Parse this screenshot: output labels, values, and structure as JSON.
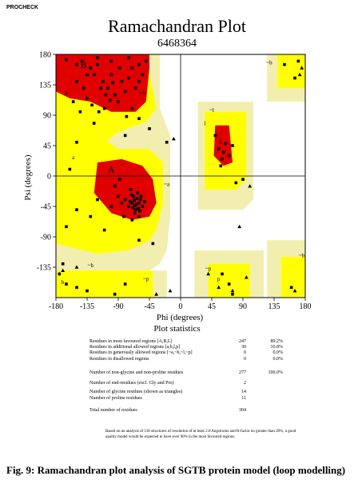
{
  "header": {
    "program": "PROCHECK",
    "title": "Ramachandran Plot",
    "subtitle": "6468364"
  },
  "colors": {
    "core": "#e00000",
    "allowed": "#ffff00",
    "generous": "#f2eeaf",
    "disallowed": "#ffffff",
    "points": "#000000"
  },
  "chart_data": {
    "type": "scatter",
    "title": "Ramachandran Plot",
    "xlabel": "Phi (degrees)",
    "ylabel": "Psi (degrees)",
    "xlim": [
      -180,
      180
    ],
    "ylim": [
      -180,
      180
    ],
    "xticks": [
      "-180",
      "-135",
      "-90",
      "-45",
      "0",
      "45",
      "90",
      "135",
      "180"
    ],
    "yticks": [
      "180",
      "135",
      "90",
      "45",
      "0",
      "-45",
      "-90",
      "-135"
    ],
    "region_labels": [
      {
        "text": "B",
        "phi": -140,
        "psi": 160
      },
      {
        "text": "b",
        "phi": -165,
        "psi": 120
      },
      {
        "text": "A",
        "phi": -100,
        "psi": 5
      },
      {
        "text": "a",
        "phi": -155,
        "psi": 25
      },
      {
        "text": "~b",
        "phi": -55,
        "psi": 120
      },
      {
        "text": "~a",
        "phi": -20,
        "psi": -15
      },
      {
        "text": "L",
        "phi": 58,
        "psi": 48
      },
      {
        "text": "~l",
        "phi": 45,
        "psi": 95
      },
      {
        "text": "l",
        "phi": 35,
        "psi": 75
      },
      {
        "text": "~p",
        "phi": -50,
        "psi": -155
      },
      {
        "text": "p",
        "phi": 55,
        "psi": -155
      },
      {
        "text": "~p",
        "phi": 40,
        "psi": -140
      },
      {
        "text": "~b",
        "phi": 128,
        "psi": 165
      },
      {
        "text": "b",
        "phi": -170,
        "psi": -160
      },
      {
        "text": "~b",
        "phi": -130,
        "psi": -135
      },
      {
        "text": "~b",
        "phi": 175,
        "psi": -120
      }
    ],
    "series": [
      {
        "symbol": "square",
        "points": [
          [
            -165,
            172
          ],
          [
            -150,
            165
          ],
          [
            -142,
            170
          ],
          [
            -130,
            160
          ],
          [
            -125,
            150
          ],
          [
            -120,
            165
          ],
          [
            -112,
            140
          ],
          [
            -105,
            130
          ],
          [
            -100,
            150
          ],
          [
            -95,
            120
          ],
          [
            -90,
            110
          ],
          [
            -85,
            140
          ],
          [
            -80,
            125
          ],
          [
            -75,
            145
          ],
          [
            -70,
            160
          ],
          [
            -65,
            130
          ],
          [
            -60,
            140
          ],
          [
            -140,
            130
          ],
          [
            -135,
            115
          ],
          [
            -128,
            105
          ],
          [
            -118,
            95
          ],
          [
            -110,
            100
          ],
          [
            -150,
            140
          ],
          [
            -155,
            110
          ],
          [
            -145,
            95
          ],
          [
            -100,
            170
          ],
          [
            -120,
            175
          ],
          [
            -75,
            175
          ],
          [
            -60,
            165
          ],
          [
            -70,
            100
          ],
          [
            -125,
            78
          ],
          [
            -108,
            120
          ],
          [
            -98,
            138
          ],
          [
            -88,
            160
          ],
          [
            -135,
            150
          ],
          [
            -115,
            130
          ],
          [
            -102,
            112
          ],
          [
            -78,
            88
          ],
          [
            -55,
            150
          ],
          [
            -50,
            170
          ],
          [
            -90,
            -30
          ],
          [
            -85,
            -40
          ],
          [
            -80,
            -35
          ],
          [
            -75,
            -45
          ],
          [
            -70,
            -40
          ],
          [
            -68,
            -30
          ],
          [
            -65,
            -50
          ],
          [
            -60,
            -40
          ],
          [
            -58,
            -35
          ],
          [
            -55,
            -45
          ],
          [
            -62,
            -25
          ],
          [
            -72,
            -20
          ],
          [
            -66,
            -55
          ],
          [
            -60,
            -60
          ],
          [
            -52,
            -38
          ],
          [
            -95,
            -15
          ],
          [
            -88,
            -5
          ],
          [
            -100,
            -45
          ],
          [
            -82,
            -60
          ],
          [
            -70,
            -65
          ],
          [
            -64,
            -42
          ],
          [
            -67,
            -36
          ],
          [
            -61,
            -48
          ],
          [
            -57,
            -30
          ],
          [
            -73,
            -38
          ],
          [
            -69,
            -47
          ],
          [
            -63,
            -33
          ],
          [
            -66,
            -44
          ],
          [
            -59,
            -52
          ],
          [
            -71,
            -28
          ],
          [
            -120,
            -35
          ],
          [
            -110,
            -80
          ],
          [
            -130,
            -60
          ],
          [
            -150,
            -50
          ],
          [
            -175,
            -145
          ],
          [
            -165,
            -160
          ],
          [
            -170,
            -130
          ],
          [
            -150,
            -165
          ],
          [
            -135,
            -170
          ],
          [
            -95,
            -175
          ],
          [
            -80,
            -160
          ],
          [
            -60,
            -95
          ],
          [
            -40,
            -100
          ],
          [
            -165,
            -75
          ],
          [
            -160,
            10
          ],
          [
            -150,
            50
          ],
          [
            -45,
            70
          ],
          [
            -60,
            85
          ],
          [
            -20,
            50
          ],
          [
            55,
            40
          ],
          [
            62,
            35
          ],
          [
            65,
            48
          ],
          [
            70,
            30
          ],
          [
            58,
            15
          ],
          [
            75,
            45
          ],
          [
            60,
            25
          ],
          [
            50,
            60
          ],
          [
            80,
            -10
          ],
          [
            90,
            -5
          ],
          [
            60,
            -145
          ],
          [
            70,
            -160
          ],
          [
            75,
            -175
          ],
          [
            150,
            165
          ],
          [
            165,
            145
          ],
          [
            170,
            170
          ],
          [
            160,
            -165
          ],
          [
            -80,
            60
          ]
        ]
      },
      {
        "symbol": "triangle",
        "points": [
          [
            -150,
            -135
          ],
          [
            175,
            160
          ],
          [
            100,
            -15
          ],
          [
            75,
            -170
          ],
          [
            -15,
            -170
          ],
          [
            165,
            -170
          ],
          [
            40,
            -145
          ],
          [
            -35,
            -175
          ],
          [
            85,
            -75
          ],
          [
            -10,
            55
          ],
          [
            55,
            -165
          ],
          [
            172,
            150
          ],
          [
            95,
            -150
          ],
          [
            -170,
            -140
          ]
        ]
      }
    ]
  },
  "stats": {
    "title": "Plot statistics",
    "rows": [
      {
        "label": "Residues in most favoured regions  [A,B,L]",
        "count": "247",
        "pct": "89.2%"
      },
      {
        "label": "Residues in additional allowed regions  [a,b,l,p]",
        "count": "30",
        "pct": "10.8%"
      },
      {
        "label": "Residues in generously allowed regions  [~a,~b,~l,~p]",
        "count": "0",
        "pct": "0.0%"
      },
      {
        "label": "Residues in disallowed regions",
        "count": "0",
        "pct": "0.0%"
      },
      {
        "label": "Number of non-glycine and non-proline residues",
        "count": "277",
        "pct": "100.0%"
      },
      {
        "label": "Number of end-residues (excl. Gly and Pro)",
        "count": "2",
        "pct": ""
      },
      {
        "label": "Number of glycine residues (shown as triangles)",
        "count": "14",
        "pct": ""
      },
      {
        "label": "Number of proline residues",
        "count": "11",
        "pct": ""
      },
      {
        "label": "Total number of residues",
        "count": "304",
        "pct": ""
      }
    ],
    "footnote": "Based on an analysis of 118 structures of resolution of at least 2.0 Angstroms and R-factor no greater than 20%, a good quality model would be expected to have over 90% in the most favoured regions."
  },
  "caption": "Fig. 9: Ramachandran plot analysis of SGTB protein model (loop modelling)"
}
